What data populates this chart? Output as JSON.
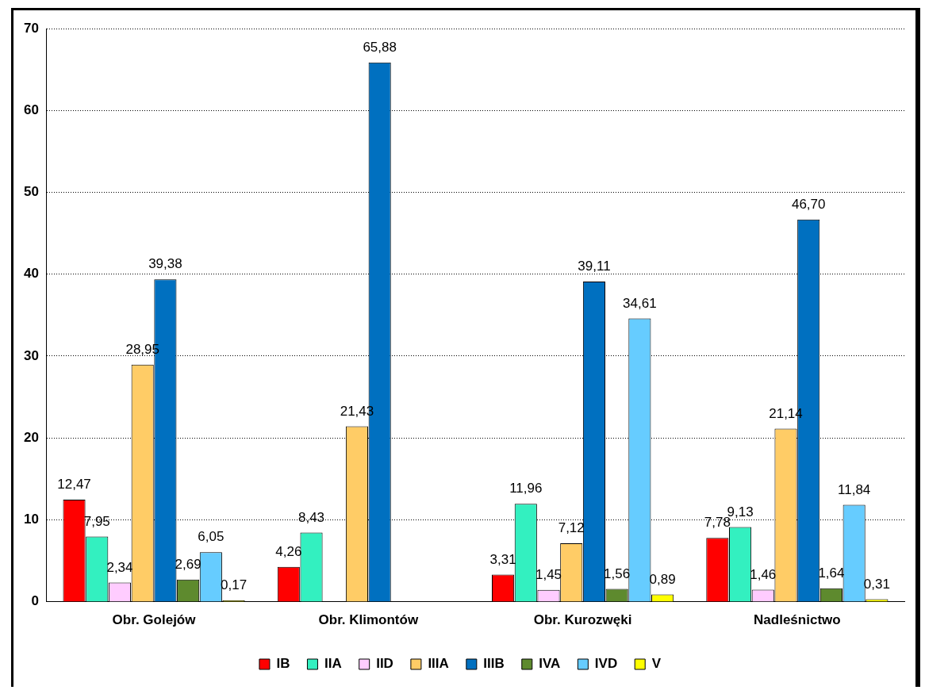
{
  "chart_data": {
    "type": "bar",
    "categories": [
      "Obr. Golejów",
      "Obr. Klimontów",
      "Obr. Kurozwęki",
      "Nadleśnictwo"
    ],
    "series": [
      {
        "name": "IB",
        "color": "#ff0000",
        "values": [
          12.47,
          4.26,
          3.31,
          7.78
        ],
        "value_labels": [
          "12,47",
          "4,26",
          "3,31",
          "7,78"
        ]
      },
      {
        "name": "IIA",
        "color": "#33f0c0",
        "values": [
          7.95,
          8.43,
          11.96,
          9.13
        ],
        "value_labels": [
          "7,95",
          "8,43",
          "11,96",
          "9,13"
        ]
      },
      {
        "name": "IID",
        "color": "#ffccff",
        "values": [
          2.34,
          null,
          1.45,
          1.46
        ],
        "value_labels": [
          "2,34",
          null,
          "1,45",
          "1,46"
        ]
      },
      {
        "name": "IIIA",
        "color": "#ffcc66",
        "values": [
          28.95,
          21.43,
          7.12,
          21.14
        ],
        "value_labels": [
          "28,95",
          "21,43",
          "7,12",
          "21,14"
        ]
      },
      {
        "name": "IIIB",
        "color": "#0070c0",
        "values": [
          39.38,
          65.88,
          39.11,
          46.7
        ],
        "value_labels": [
          "39,38",
          "65,88",
          "39,11",
          "46,70"
        ]
      },
      {
        "name": "IVA",
        "color": "#5e8a2e",
        "values": [
          2.69,
          null,
          1.56,
          1.64
        ],
        "value_labels": [
          "2,69",
          null,
          "1,56",
          "1,64"
        ]
      },
      {
        "name": "IVD",
        "color": "#66ccff",
        "values": [
          6.05,
          null,
          34.61,
          11.84
        ],
        "value_labels": [
          "6,05",
          null,
          "34,61",
          "11,84"
        ]
      },
      {
        "name": "V",
        "color": "#ffff00",
        "values": [
          0.17,
          null,
          0.89,
          0.31
        ],
        "value_labels": [
          "0,17",
          null,
          "0,89",
          "0,31"
        ]
      }
    ],
    "ylim": [
      0,
      70
    ],
    "yticks": [
      0,
      10,
      20,
      30,
      40,
      50,
      60,
      70
    ],
    "grid": "y",
    "legend": "bottom"
  }
}
